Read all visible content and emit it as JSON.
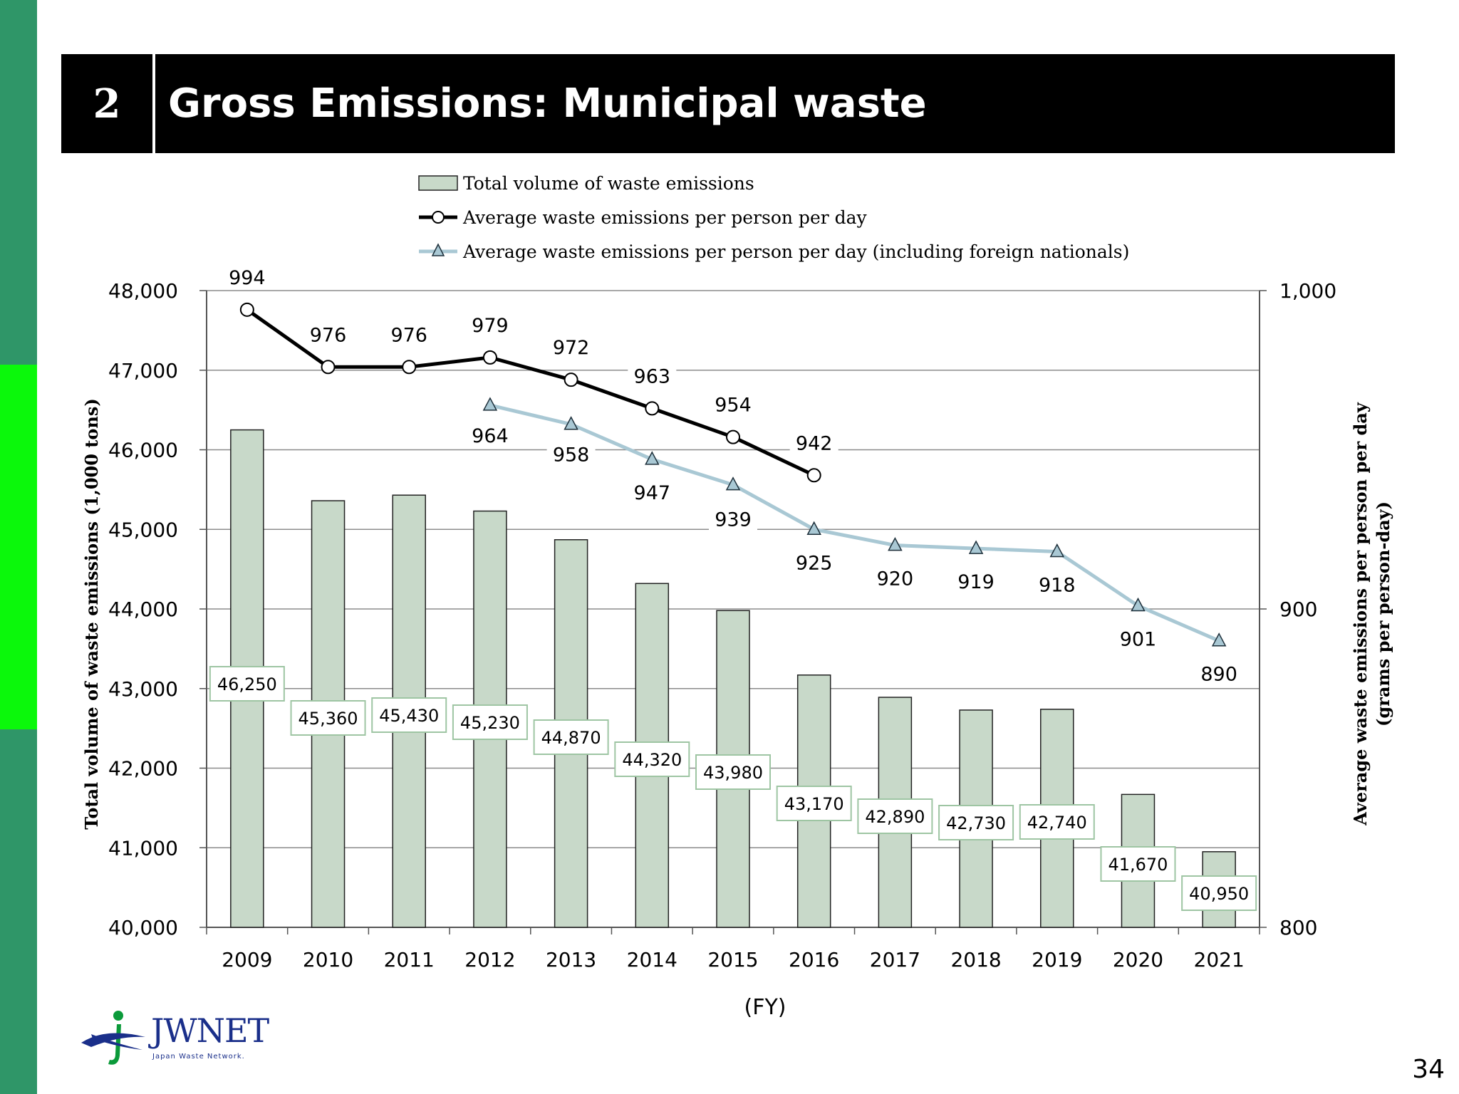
{
  "header": {
    "number": "2",
    "title": "Gross Emissions: Municipal waste"
  },
  "page_number": "34",
  "logo": {
    "text": "JWNET",
    "subtitle": "Japan Waste Network."
  },
  "chart_data": {
    "type": "bar",
    "title": "",
    "xlabel": "(FY)",
    "ylabel": "Total volume of waste emissions (1,000 tons)",
    "y2label": [
      "Average waste emissions per person per day",
      "(grams per person-day)"
    ],
    "categories": [
      "2009",
      "2010",
      "2011",
      "2012",
      "2013",
      "2014",
      "2015",
      "2016",
      "2017",
      "2018",
      "2019",
      "2020",
      "2021"
    ],
    "ylim": [
      40000,
      48000
    ],
    "y_ticks": [
      40000,
      41000,
      42000,
      43000,
      44000,
      45000,
      46000,
      47000,
      48000
    ],
    "y_tick_labels": [
      "40,000",
      "41,000",
      "42,000",
      "43,000",
      "44,000",
      "45,000",
      "46,000",
      "47,000",
      "48,000"
    ],
    "y2lim": [
      800,
      1000
    ],
    "y2_ticks": [
      800,
      900,
      1000
    ],
    "y2_tick_labels": [
      "800",
      "900",
      "1,000"
    ],
    "grid": true,
    "legend_placement": "top-center",
    "series": [
      {
        "name": "Total volume of waste emissions",
        "type": "bar",
        "axis": "left",
        "color": "#c8d9c9",
        "values": [
          46250,
          45360,
          45430,
          45230,
          44870,
          44320,
          43980,
          43170,
          42890,
          42730,
          42740,
          41670,
          40950
        ],
        "labels": [
          "46,250",
          "45,360",
          "45,430",
          "45,230",
          "44,870",
          "44,320",
          "43,980",
          "43,170",
          "42,890",
          "42,730",
          "42,740",
          "41,670",
          "40,950"
        ]
      },
      {
        "name": "Average waste emissions per person per day",
        "type": "line",
        "axis": "right",
        "marker": "circle",
        "color": "#000000",
        "values": [
          994,
          976,
          976,
          979,
          972,
          963,
          954,
          942,
          null,
          null,
          null,
          null,
          null
        ],
        "labels": [
          "994",
          "976",
          "976",
          "979",
          "972",
          "963",
          "954",
          "942",
          "",
          "",
          "",
          "",
          ""
        ]
      },
      {
        "name": "Average waste emissions per person per day (including foreign nationals)",
        "type": "line",
        "axis": "right",
        "marker": "triangle",
        "color": "#a9c8d4",
        "values": [
          null,
          null,
          null,
          964,
          958,
          947,
          939,
          925,
          920,
          919,
          918,
          901,
          890
        ],
        "labels": [
          "",
          "",
          "",
          "964",
          "958",
          "947",
          "939",
          "925",
          "920",
          "919",
          "918",
          "901",
          "890"
        ]
      }
    ]
  }
}
